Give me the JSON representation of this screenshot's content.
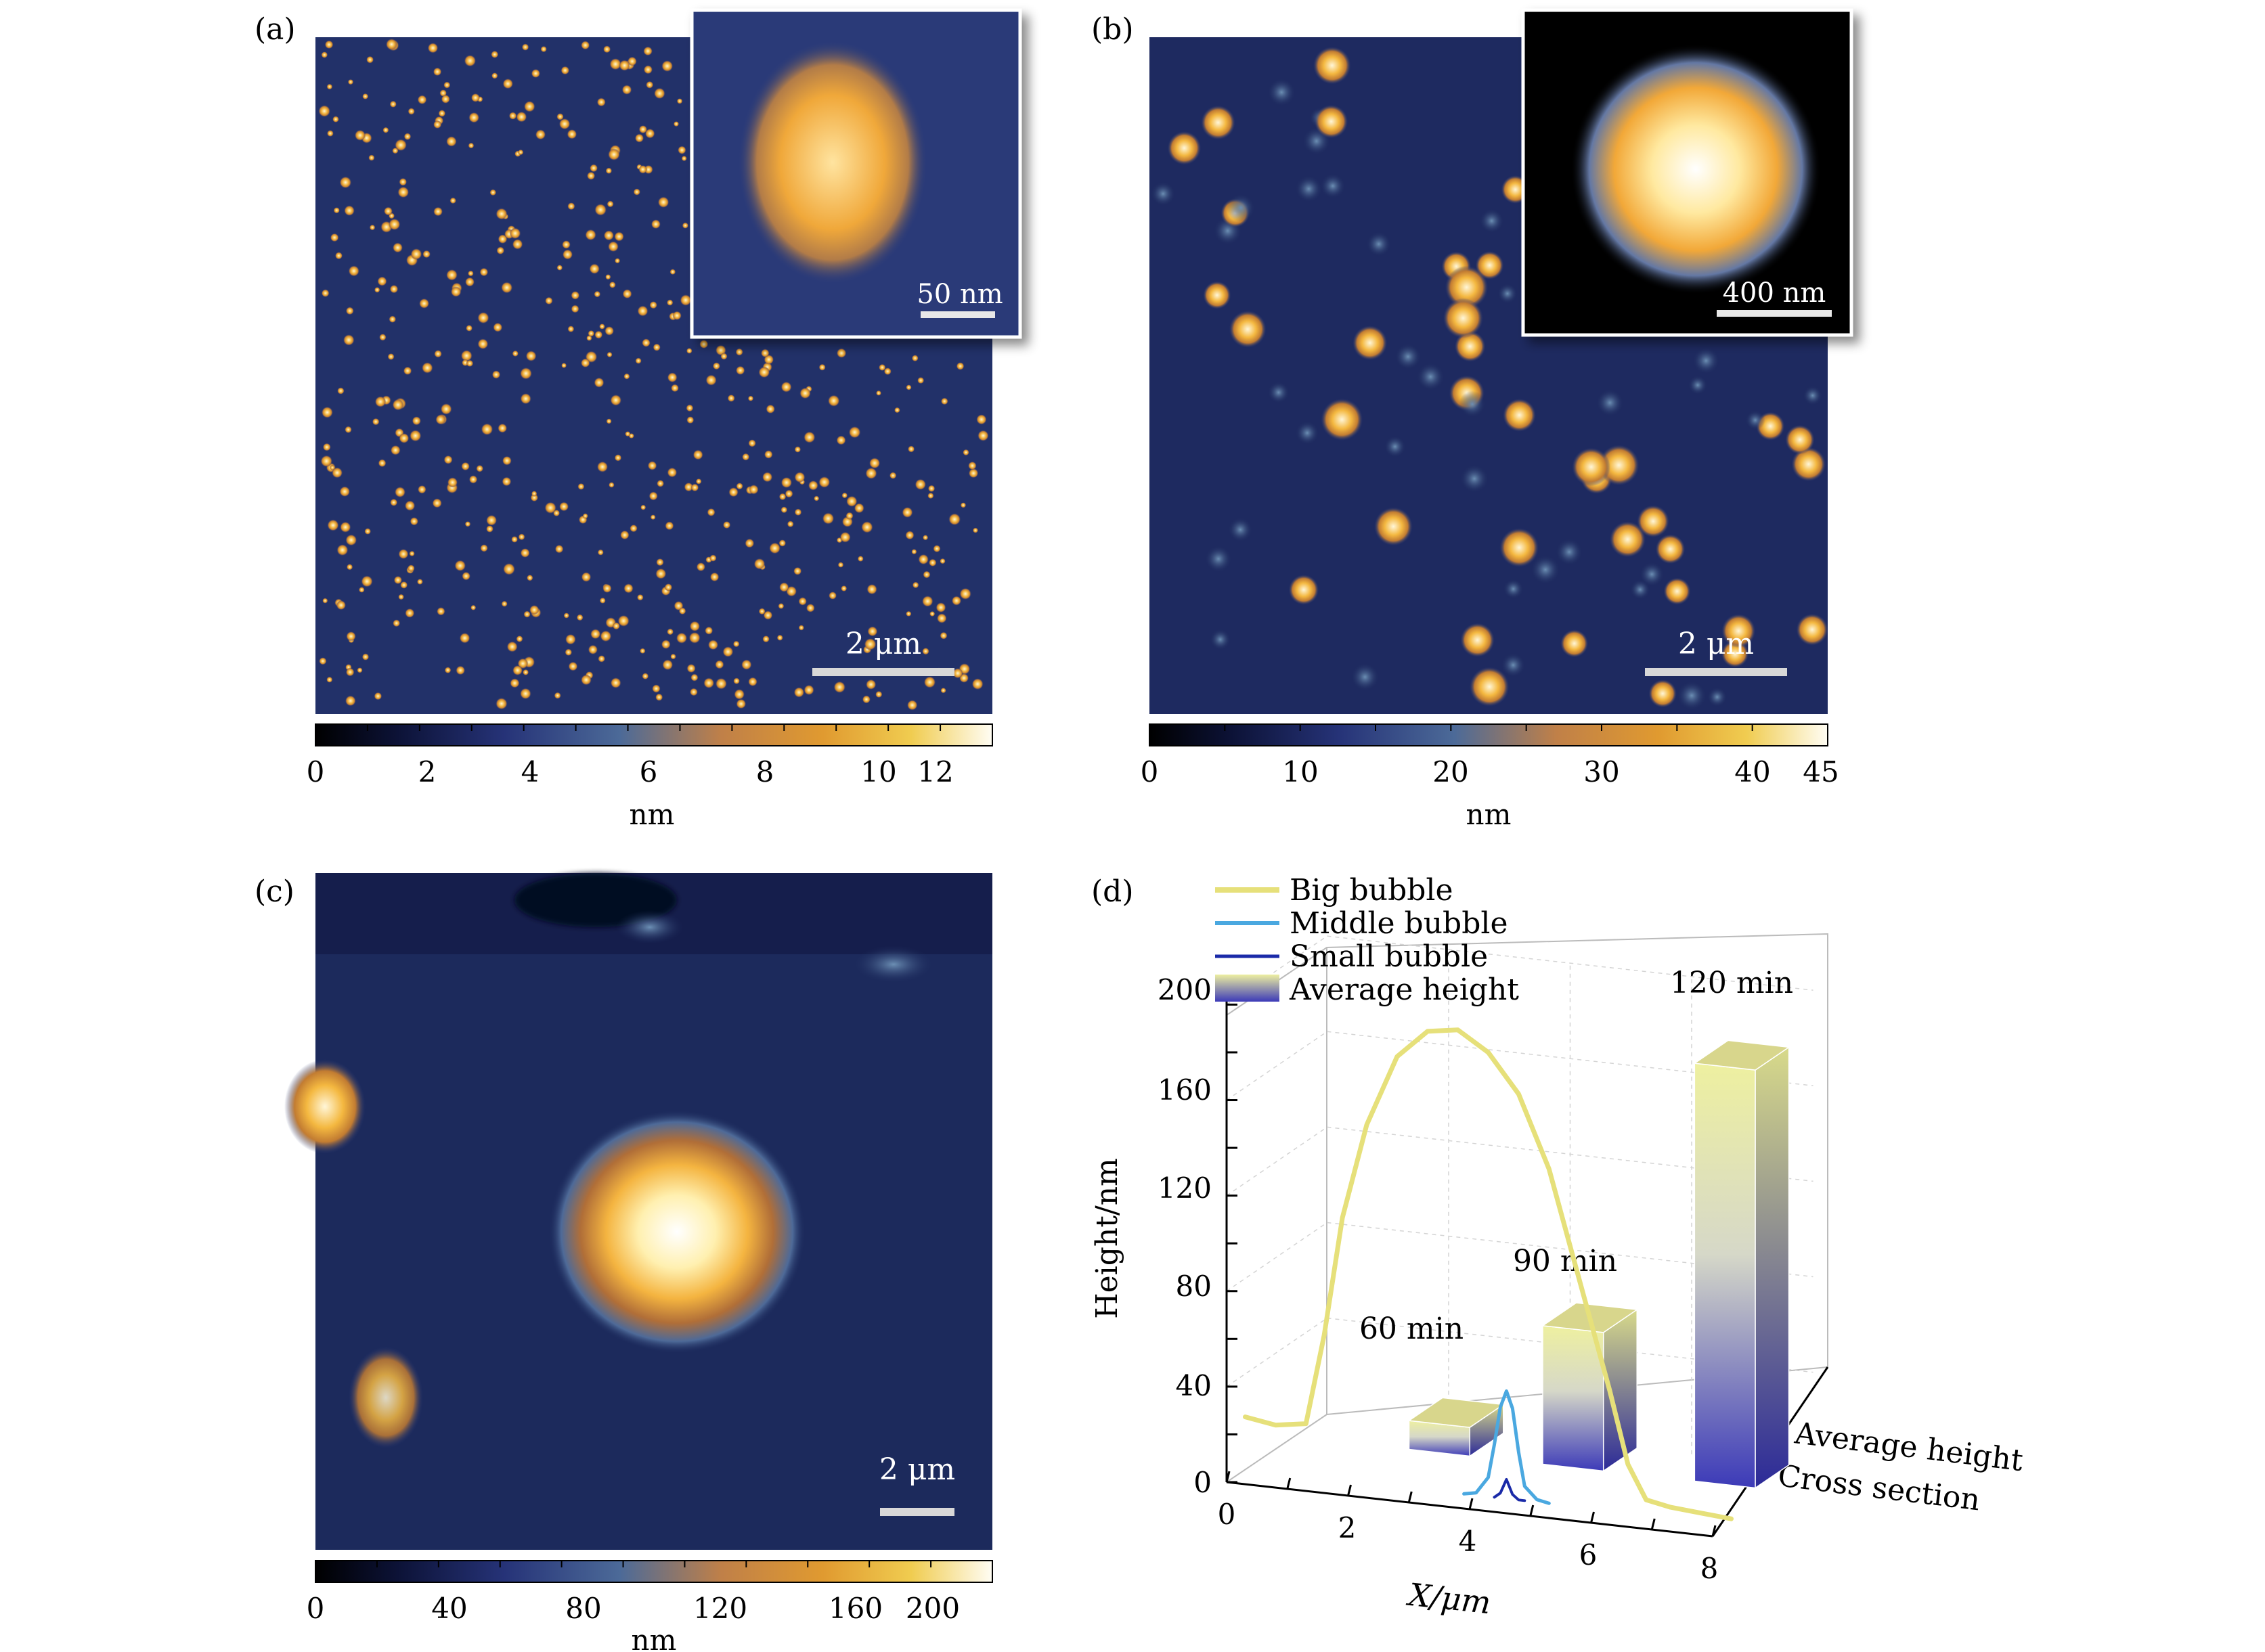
{
  "panels": {
    "a": {
      "label": "(a)",
      "inset_scale": "50 nm",
      "scale": "2 μm",
      "colorbar": {
        "ticks": [
          "0",
          "2",
          "4",
          "6",
          "8",
          "10",
          "12"
        ],
        "tick_values": [
          0,
          2,
          4,
          6,
          8,
          10,
          12
        ],
        "max": 13,
        "unit": "nm"
      }
    },
    "b": {
      "label": "(b)",
      "inset_scale": "400 nm",
      "scale": "2 μm",
      "colorbar": {
        "ticks": [
          "0",
          "10",
          "20",
          "30",
          "40",
          "45"
        ],
        "tick_values": [
          0,
          10,
          20,
          30,
          40,
          45
        ],
        "max": 45,
        "unit": "nm"
      }
    },
    "c": {
      "label": "(c)",
      "scale": "2 μm",
      "colorbar": {
        "ticks": [
          "0",
          "40",
          "80",
          "120",
          "160",
          "200"
        ],
        "tick_values": [
          0,
          40,
          80,
          120,
          160,
          200
        ],
        "max": 225,
        "unit": "nm"
      }
    },
    "d": {
      "label": "(d)"
    }
  },
  "colors": {
    "bg_dark": "#1c2a5c",
    "bump": "#f4b840",
    "big_bubble": "#e6e07a",
    "middle_bubble": "#4aa8e0",
    "small_bubble": "#1a2aa8",
    "bar_top": "#eef0a0",
    "bar_bottom": "#3c3ab8"
  },
  "chart_data": {
    "type": "3d-bar-line",
    "title": "",
    "xlabel": "X/μm",
    "zlabel": "Height/nm",
    "depth_labels": [
      "Average height",
      "Cross section"
    ],
    "x_ticks": [
      "0",
      "2",
      "4",
      "6",
      "8"
    ],
    "z_ticks": [
      "0",
      "40",
      "80",
      "120",
      "160",
      "200"
    ],
    "xlim": [
      0,
      8
    ],
    "zlim": [
      0,
      200
    ],
    "legend": [
      "Big bubble",
      "Middle bubble",
      "Small bubble",
      "Average height"
    ],
    "legend_position": "top-left",
    "bars": [
      {
        "label": "60 min",
        "x": 2.4,
        "height": 12
      },
      {
        "label": "90 min",
        "x": 4.6,
        "height": 58
      },
      {
        "label": "120 min",
        "x": 7.1,
        "height": 175
      }
    ],
    "series": [
      {
        "name": "Big bubble",
        "x": [
          0,
          0.5,
          1.0,
          1.3,
          1.6,
          2.0,
          2.5,
          3.0,
          3.5,
          4.0,
          4.5,
          5.0,
          5.5,
          6.0,
          6.3,
          6.6,
          7.0,
          7.5,
          8.0
        ],
        "y": [
          22,
          20,
          22,
          60,
          110,
          150,
          180,
          192,
          194,
          186,
          170,
          140,
          95,
          50,
          20,
          6,
          4,
          3,
          2
        ]
      },
      {
        "name": "Middle bubble",
        "x": [
          3.6,
          3.8,
          4.0,
          4.1,
          4.2,
          4.3,
          4.4,
          4.5,
          4.6,
          4.8,
          5.0
        ],
        "y": [
          0,
          1,
          8,
          22,
          38,
          45,
          38,
          20,
          6,
          1,
          0
        ]
      },
      {
        "name": "Small bubble",
        "x": [
          4.1,
          4.2,
          4.3,
          4.4,
          4.5,
          4.6
        ],
        "y": [
          0,
          2,
          8,
          2,
          0,
          0
        ]
      }
    ]
  }
}
